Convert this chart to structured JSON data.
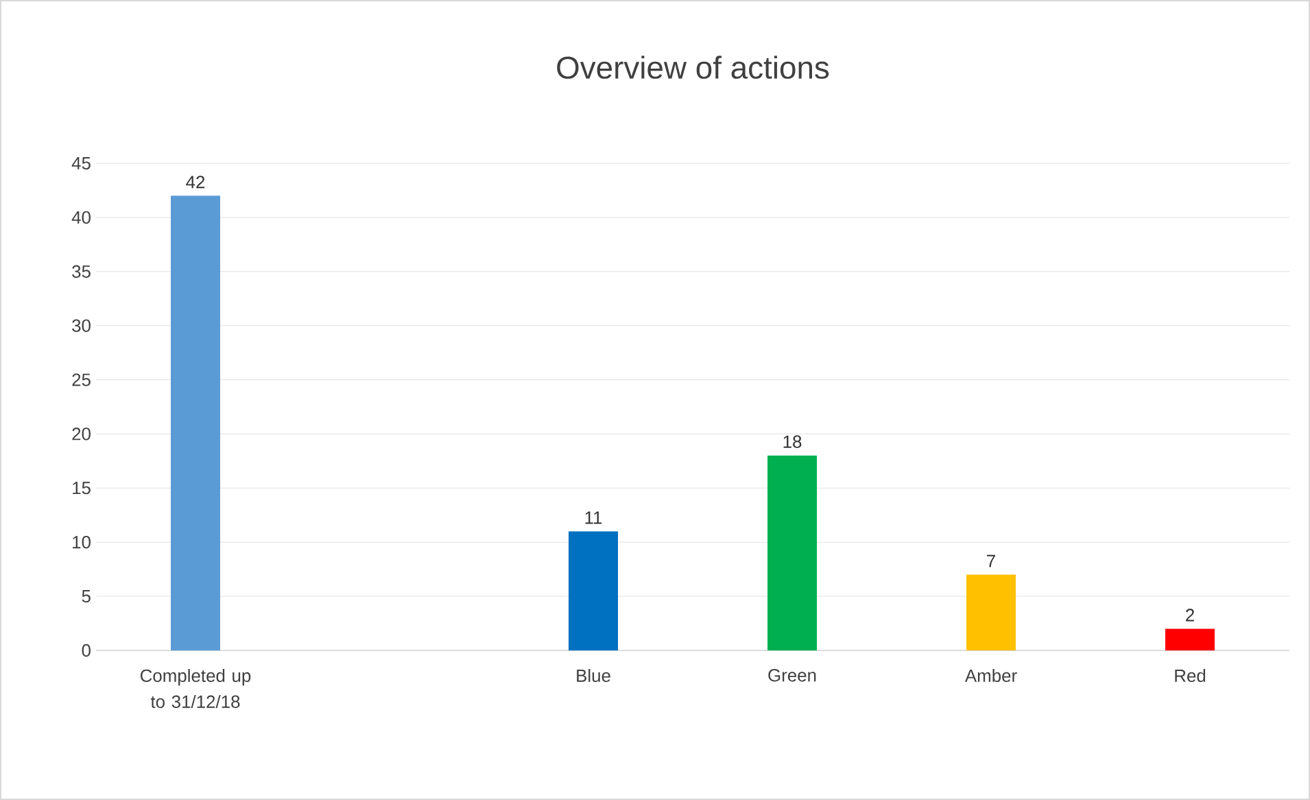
{
  "chart_data": {
    "type": "bar",
    "title": "Overview of actions",
    "categories": [
      "Completed up to 31/12/18",
      null,
      "Blue",
      "Green",
      "Amber",
      "Red"
    ],
    "values": [
      42,
      null,
      11,
      18,
      7,
      2
    ],
    "colors": [
      "#5b9bd5",
      null,
      "#0070c0",
      "#00b050",
      "#ffc000",
      "#ff0000"
    ],
    "ylim": [
      0,
      45
    ],
    "yticks": [
      0,
      5,
      10,
      15,
      20,
      25,
      30,
      35,
      40,
      45
    ],
    "grid": "y",
    "data_labels": true
  }
}
